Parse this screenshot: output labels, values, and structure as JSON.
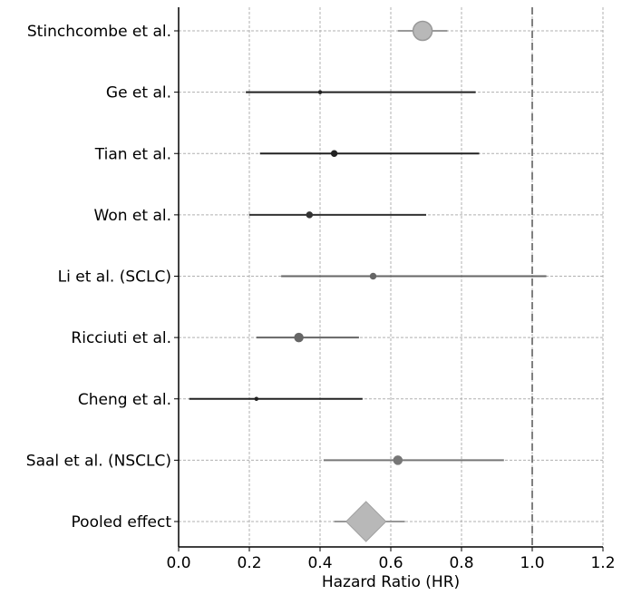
{
  "chart_data": {
    "type": "forest",
    "title": "",
    "xlabel": "Hazard Ratio (HR)",
    "ylabel": "",
    "xlim": [
      0.0,
      1.2
    ],
    "x_ticks": [
      "0.0",
      "0.2",
      "0.4",
      "0.6",
      "0.8",
      "1.0",
      "1.2"
    ],
    "reference_line": 1.0,
    "grid": true,
    "studies": [
      {
        "label": "Stinchcombe et al.",
        "hr": 0.69,
        "ci_low": 0.62,
        "ci_high": 0.76,
        "weight": "large",
        "color": "#999999"
      },
      {
        "label": "Ge et al.",
        "hr": 0.4,
        "ci_low": 0.19,
        "ci_high": 0.84,
        "weight": "tiny",
        "color": "#222222"
      },
      {
        "label": "Tian et al.",
        "hr": 0.44,
        "ci_low": 0.23,
        "ci_high": 0.85,
        "weight": "small",
        "color": "#222222"
      },
      {
        "label": "Won et al.",
        "hr": 0.37,
        "ci_low": 0.2,
        "ci_high": 0.7,
        "weight": "small",
        "color": "#333333"
      },
      {
        "label": "Li et al. (SCLC)",
        "hr": 0.55,
        "ci_low": 0.29,
        "ci_high": 1.04,
        "weight": "small",
        "color": "#666666"
      },
      {
        "label": "Ricciuti et al.",
        "hr": 0.34,
        "ci_low": 0.22,
        "ci_high": 0.51,
        "weight": "medium",
        "color": "#666666"
      },
      {
        "label": "Cheng et al.",
        "hr": 0.22,
        "ci_low": 0.03,
        "ci_high": 0.52,
        "weight": "tiny",
        "color": "#222222"
      },
      {
        "label": "Saal et al. (NSCLC)",
        "hr": 0.62,
        "ci_low": 0.41,
        "ci_high": 0.92,
        "weight": "medium",
        "color": "#777777"
      }
    ],
    "pooled": {
      "label": "Pooled effect",
      "hr": 0.53,
      "ci_low": 0.44,
      "ci_high": 0.64,
      "color": "#999999"
    }
  }
}
